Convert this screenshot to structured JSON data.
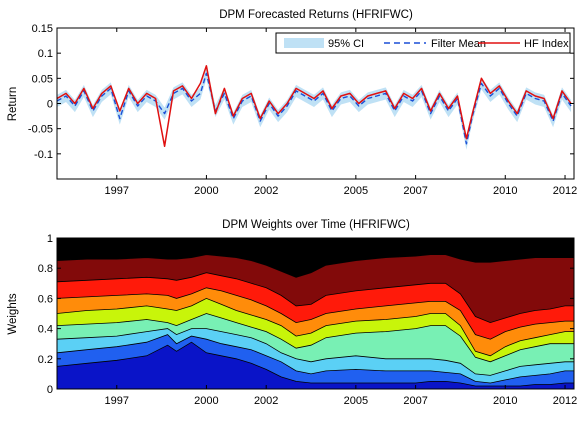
{
  "chart_data": [
    {
      "type": "line",
      "title": "DPM Forecasted Returns (HFRIFWC)",
      "xlabel": "",
      "ylabel": "Return",
      "xlim": [
        1995.0,
        2012.3
      ],
      "ylim": [
        -0.15,
        0.15
      ],
      "yticks": [
        -0.1,
        -0.05,
        0,
        0.05,
        0.1,
        0.15
      ],
      "ytick_labels": [
        "-0.1",
        "-0.05",
        "0",
        "0.05",
        "0.1",
        "0.15"
      ],
      "xticks": [
        1997,
        2000,
        2002,
        2005,
        2007,
        2010,
        2012
      ],
      "xtick_labels": [
        "1997",
        "2000",
        "2002",
        "2005",
        "2007",
        "2010",
        "2012"
      ],
      "legend_position": "top-right",
      "legend": [
        "95% CI",
        "Filter Mean",
        "HF Index"
      ],
      "colors": {
        "ci": "#bfe1f5",
        "filter_mean": "#1a4fd6",
        "hf_index": "#e01010"
      },
      "grid": false,
      "series": [
        {
          "name": "HF Index",
          "x": [
            1995.0,
            1995.3,
            1995.6,
            1995.9,
            1996.2,
            1996.5,
            1996.8,
            1997.1,
            1997.4,
            1997.7,
            1998.0,
            1998.3,
            1998.6,
            1998.9,
            1999.2,
            1999.5,
            1999.8,
            2000.0,
            2000.3,
            2000.6,
            2000.9,
            2001.2,
            2001.5,
            2001.8,
            2002.1,
            2002.4,
            2002.7,
            2003.0,
            2003.3,
            2003.6,
            2003.9,
            2004.2,
            2004.5,
            2004.8,
            2005.1,
            2005.4,
            2005.7,
            2006.0,
            2006.3,
            2006.6,
            2006.9,
            2007.2,
            2007.5,
            2007.8,
            2008.1,
            2008.4,
            2008.7,
            2008.9,
            2009.2,
            2009.5,
            2009.8,
            2010.1,
            2010.4,
            2010.7,
            2011.0,
            2011.3,
            2011.6,
            2011.9,
            2012.2
          ],
          "y": [
            0.01,
            0.02,
            0.0,
            0.03,
            -0.01,
            0.02,
            0.035,
            -0.015,
            0.03,
            0.0,
            0.02,
            0.01,
            -0.085,
            0.025,
            0.035,
            0.01,
            0.04,
            0.075,
            -0.02,
            0.03,
            -0.025,
            0.01,
            0.02,
            -0.03,
            0.005,
            -0.02,
            0.0,
            0.03,
            0.02,
            0.01,
            0.025,
            -0.01,
            0.015,
            0.02,
            0.0,
            0.015,
            0.02,
            0.025,
            -0.01,
            0.02,
            0.01,
            0.03,
            -0.015,
            0.02,
            -0.01,
            0.015,
            -0.07,
            -0.02,
            0.05,
            0.02,
            0.035,
            0.005,
            -0.02,
            0.025,
            0.015,
            0.01,
            -0.03,
            0.025,
            0.0
          ]
        },
        {
          "name": "Filter Mean",
          "x": [
            1995.0,
            1995.3,
            1995.6,
            1995.9,
            1996.2,
            1996.5,
            1996.8,
            1997.1,
            1997.4,
            1997.7,
            1998.0,
            1998.3,
            1998.6,
            1998.9,
            1999.2,
            1999.5,
            1999.8,
            2000.0,
            2000.3,
            2000.6,
            2000.9,
            2001.2,
            2001.5,
            2001.8,
            2002.1,
            2002.4,
            2002.7,
            2003.0,
            2003.3,
            2003.6,
            2003.9,
            2004.2,
            2004.5,
            2004.8,
            2005.1,
            2005.4,
            2005.7,
            2006.0,
            2006.3,
            2006.6,
            2006.9,
            2007.2,
            2007.5,
            2007.8,
            2008.1,
            2008.4,
            2008.7,
            2008.9,
            2009.2,
            2009.5,
            2009.8,
            2010.1,
            2010.4,
            2010.7,
            2011.0,
            2011.3,
            2011.6,
            2011.9,
            2012.2
          ],
          "y": [
            0.005,
            0.015,
            -0.005,
            0.025,
            -0.015,
            0.015,
            0.03,
            -0.03,
            0.025,
            -0.005,
            0.015,
            0.005,
            -0.02,
            0.02,
            0.03,
            0.005,
            0.02,
            0.06,
            -0.015,
            0.02,
            -0.03,
            0.005,
            0.015,
            -0.035,
            0.0,
            -0.025,
            -0.005,
            0.025,
            0.015,
            0.005,
            0.02,
            -0.015,
            0.01,
            0.015,
            -0.005,
            0.01,
            0.015,
            0.02,
            -0.015,
            0.015,
            0.005,
            0.025,
            -0.02,
            0.015,
            -0.015,
            0.01,
            -0.08,
            -0.025,
            0.04,
            0.015,
            0.03,
            0.0,
            -0.025,
            0.02,
            0.01,
            0.005,
            -0.035,
            0.02,
            -0.005
          ]
        }
      ],
      "ci_halfwidth": 0.012
    },
    {
      "type": "area",
      "title": "DPM Weights over Time (HFRIFWC)",
      "xlabel": "",
      "ylabel": "Weights",
      "xlim": [
        1995.0,
        2012.3
      ],
      "ylim": [
        0,
        1
      ],
      "yticks": [
        0,
        0.2,
        0.4,
        0.6,
        0.8,
        1
      ],
      "ytick_labels": [
        "0",
        "0.2",
        "0.4",
        "0.6",
        "0.8",
        "1"
      ],
      "xticks": [
        1997,
        2000,
        2002,
        2005,
        2007,
        2010,
        2012
      ],
      "xtick_labels": [
        "1997",
        "2000",
        "2002",
        "2005",
        "2007",
        "2010",
        "2012"
      ],
      "stacked": true,
      "grid": false,
      "x": [
        1995.0,
        1996.0,
        1997.0,
        1998.0,
        1998.7,
        1999.0,
        1999.5,
        2000.0,
        2000.5,
        2001.0,
        2001.5,
        2002.0,
        2002.5,
        2003.0,
        2003.5,
        2004.0,
        2005.0,
        2006.0,
        2007.0,
        2007.5,
        2008.0,
        2008.5,
        2009.0,
        2009.5,
        2010.0,
        2010.5,
        2011.0,
        2011.5,
        2012.0,
        2012.3
      ],
      "cumulative_boundaries": [
        [
          0.15,
          0.17,
          0.19,
          0.22,
          0.29,
          0.25,
          0.31,
          0.24,
          0.22,
          0.2,
          0.17,
          0.13,
          0.08,
          0.05,
          0.04,
          0.04,
          0.04,
          0.04,
          0.04,
          0.05,
          0.05,
          0.04,
          0.02,
          0.02,
          0.02,
          0.02,
          0.03,
          0.03,
          0.04,
          0.04
        ],
        [
          0.24,
          0.26,
          0.28,
          0.31,
          0.36,
          0.3,
          0.35,
          0.33,
          0.3,
          0.28,
          0.26,
          0.22,
          0.18,
          0.12,
          0.1,
          0.12,
          0.13,
          0.12,
          0.12,
          0.12,
          0.11,
          0.1,
          0.05,
          0.04,
          0.06,
          0.08,
          0.09,
          0.1,
          0.12,
          0.12
        ],
        [
          0.33,
          0.34,
          0.35,
          0.38,
          0.4,
          0.36,
          0.4,
          0.4,
          0.38,
          0.36,
          0.34,
          0.3,
          0.24,
          0.2,
          0.18,
          0.2,
          0.22,
          0.2,
          0.2,
          0.2,
          0.19,
          0.17,
          0.1,
          0.09,
          0.12,
          0.15,
          0.16,
          0.17,
          0.18,
          0.18
        ],
        [
          0.42,
          0.43,
          0.44,
          0.46,
          0.44,
          0.42,
          0.46,
          0.5,
          0.47,
          0.44,
          0.41,
          0.38,
          0.33,
          0.27,
          0.29,
          0.34,
          0.37,
          0.38,
          0.4,
          0.42,
          0.42,
          0.35,
          0.21,
          0.18,
          0.22,
          0.26,
          0.28,
          0.3,
          0.3,
          0.3
        ],
        [
          0.5,
          0.52,
          0.53,
          0.55,
          0.53,
          0.52,
          0.55,
          0.6,
          0.56,
          0.52,
          0.49,
          0.46,
          0.42,
          0.35,
          0.37,
          0.42,
          0.45,
          0.46,
          0.48,
          0.5,
          0.5,
          0.42,
          0.25,
          0.22,
          0.28,
          0.32,
          0.34,
          0.36,
          0.38,
          0.38
        ],
        [
          0.6,
          0.61,
          0.62,
          0.63,
          0.62,
          0.6,
          0.63,
          0.67,
          0.65,
          0.62,
          0.59,
          0.55,
          0.5,
          0.44,
          0.46,
          0.5,
          0.53,
          0.55,
          0.57,
          0.58,
          0.58,
          0.52,
          0.36,
          0.33,
          0.38,
          0.41,
          0.43,
          0.44,
          0.45,
          0.45
        ],
        [
          0.71,
          0.72,
          0.73,
          0.74,
          0.73,
          0.72,
          0.74,
          0.77,
          0.75,
          0.73,
          0.7,
          0.67,
          0.62,
          0.55,
          0.56,
          0.62,
          0.65,
          0.67,
          0.69,
          0.7,
          0.7,
          0.63,
          0.48,
          0.44,
          0.47,
          0.5,
          0.52,
          0.53,
          0.55,
          0.55
        ],
        [
          0.85,
          0.86,
          0.86,
          0.87,
          0.86,
          0.86,
          0.87,
          0.89,
          0.88,
          0.87,
          0.85,
          0.82,
          0.78,
          0.74,
          0.77,
          0.82,
          0.85,
          0.87,
          0.88,
          0.89,
          0.89,
          0.86,
          0.84,
          0.84,
          0.85,
          0.86,
          0.87,
          0.87,
          0.87,
          0.87
        ]
      ],
      "colors": [
        "#0a14c8",
        "#2060f0",
        "#5bd0f5",
        "#78f0b4",
        "#c8f50a",
        "#ff8c0a",
        "#ff1a0a",
        "#820a0a"
      ]
    }
  ]
}
